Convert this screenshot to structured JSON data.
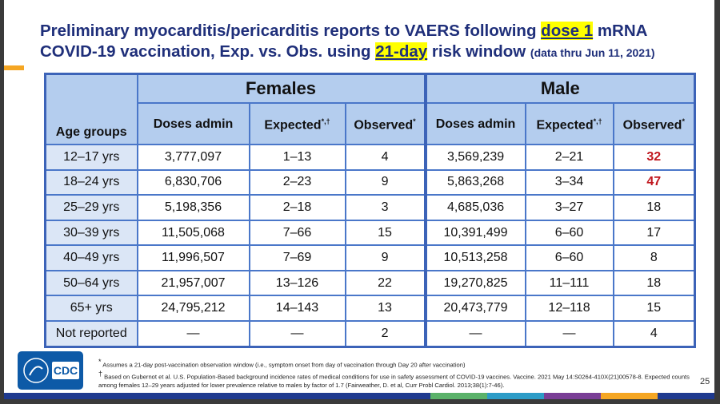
{
  "header": {
    "title": [
      "Preliminary myocarditis/pericarditis reports to VAERS following ",
      "dose 1",
      " mRNA COVID-19 vaccination, Exp. vs. Obs. using ",
      "21-day",
      " risk window ",
      "(data thru Jun 11, 2021)"
    ]
  },
  "table": {
    "group_headers": [
      "Females",
      "Male"
    ],
    "columns": [
      "Age groups",
      "Doses admin",
      "Expected",
      "Observed",
      "Doses admin",
      "Expected",
      "Observed"
    ],
    "superscripts": {
      "expected": "*,†",
      "observed": "*"
    },
    "rows": [
      [
        "12–17 yrs",
        "3,777,097",
        "1–13",
        "4",
        "3,569,239",
        "2–21",
        "32"
      ],
      [
        "18–24 yrs",
        "6,830,706",
        "2–23",
        "9",
        "5,863,268",
        "3–34",
        "47"
      ],
      [
        "25–29 yrs",
        "5,198,356",
        "2–18",
        "3",
        "4,685,036",
        "3–27",
        "18"
      ],
      [
        "30–39 yrs",
        "11,505,068",
        "7–66",
        "15",
        "10,391,499",
        "6–60",
        "17"
      ],
      [
        "40–49 yrs",
        "11,996,507",
        "7–69",
        "9",
        "10,513,258",
        "6–60",
        "8"
      ],
      [
        "50–64 yrs",
        "21,957,007",
        "13–126",
        "22",
        "19,270,825",
        "11–111",
        "18"
      ],
      [
        "65+ yrs",
        "24,795,212",
        "14–143",
        "13",
        "20,473,779",
        "12–118",
        "15"
      ],
      [
        "Not reported",
        "—",
        "—",
        "2",
        "—",
        "—",
        "4"
      ]
    ]
  },
  "footnotes": [
    {
      "mark": "*",
      "text": "Assumes a 21-day post-vaccination observation window (i.e., symptom onset from day of vaccination through Day 20 after vaccination)"
    },
    {
      "mark": "†",
      "text": "Based on Gubernot et al. U.S. Population-Based background incidence rates of medical conditions for use in safety assessment of COVID-19 vaccines. Vaccine. 2021 May 14:S0264-410X(21)00578-8. Expected counts among females 12–29 years adjusted for lower prevalence relative to males by factor of 1.7 (Fairweather, D. et al, Curr Probl Cardiol. 2013;38(1):7-46)."
    }
  ],
  "logo": "CDC",
  "page_number": "25"
}
